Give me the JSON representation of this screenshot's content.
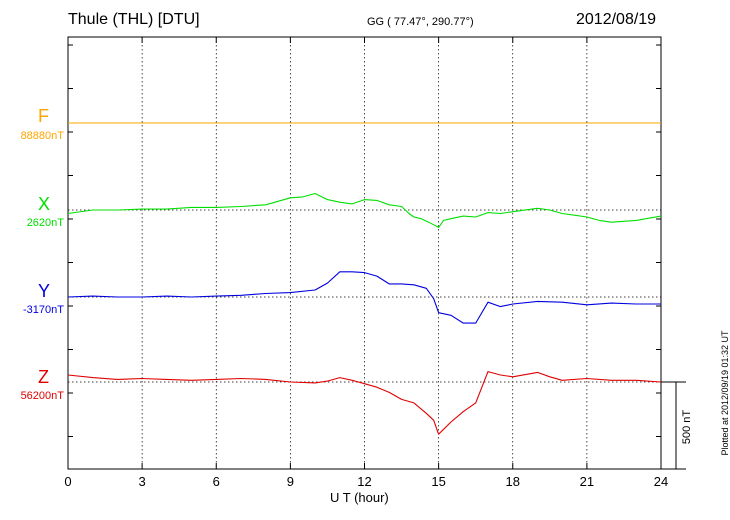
{
  "header": {
    "station": "Thule (THL)  [DTU]",
    "coords": "GG ( 77.47°, 290.77°)",
    "date": "2012/08/19"
  },
  "footer": {
    "plotted": "Plotted at 2012/09/19 01:32 UT"
  },
  "scale_bar": {
    "label": "500 nT",
    "value_nT": 500
  },
  "colors": {
    "F": "#ffa500",
    "X": "#00e000",
    "Y": "#0000e0",
    "Z": "#e00000"
  },
  "chart_data": {
    "type": "line",
    "xlabel": "U T (hour)",
    "xlim": [
      0,
      24
    ],
    "xticks": [
      0,
      3,
      6,
      9,
      12,
      15,
      18,
      21,
      24
    ],
    "grid": true,
    "series": [
      {
        "name": "F",
        "baseline_label": "88880nT",
        "x": [
          0,
          24
        ],
        "y": [
          0,
          0
        ]
      },
      {
        "name": "X",
        "baseline_label": "2620nT",
        "x": [
          0,
          1,
          2,
          3,
          4,
          5,
          6,
          7,
          8,
          9,
          9.5,
          10,
          10.5,
          11,
          11.5,
          12,
          12.5,
          13,
          13.5,
          13.8,
          14,
          14.3,
          14.6,
          15,
          15.2,
          15.5,
          16,
          16.5,
          17,
          17.5,
          18,
          19,
          19.5,
          20,
          20.5,
          21,
          21.5,
          22,
          23,
          24
        ],
        "y": [
          -20,
          0,
          0,
          5,
          5,
          15,
          15,
          20,
          30,
          70,
          75,
          95,
          60,
          45,
          35,
          60,
          55,
          30,
          20,
          -20,
          -40,
          -50,
          -70,
          -100,
          -60,
          -50,
          -35,
          -40,
          -15,
          -20,
          -10,
          10,
          0,
          -20,
          -30,
          -40,
          -60,
          -70,
          -60,
          -35
        ]
      },
      {
        "name": "Y",
        "baseline_label": "-3170nT",
        "x": [
          0,
          1,
          2,
          3,
          4,
          5,
          6,
          7,
          8,
          9,
          10,
          10.5,
          11,
          11.5,
          12,
          12.5,
          13,
          13.5,
          14,
          14.5,
          14.8,
          15,
          15.5,
          16,
          16.5,
          17,
          17.5,
          18,
          19,
          20,
          21,
          22,
          23,
          24
        ],
        "y": [
          0,
          5,
          0,
          0,
          5,
          0,
          5,
          10,
          20,
          25,
          40,
          80,
          145,
          145,
          140,
          120,
          75,
          75,
          70,
          50,
          -10,
          -90,
          -105,
          -150,
          -150,
          -30,
          -55,
          -40,
          -25,
          -30,
          -45,
          -35,
          -40,
          -40
        ]
      },
      {
        "name": "Z",
        "baseline_label": "56200nT",
        "x": [
          0,
          1,
          2,
          3,
          4,
          5,
          6,
          7,
          8,
          9,
          10,
          10.5,
          11,
          11.5,
          12,
          12.5,
          13,
          13.5,
          14,
          14.5,
          14.8,
          15,
          15.5,
          16,
          16.5,
          17,
          17.5,
          18,
          19,
          19.5,
          20,
          21,
          22,
          23,
          24
        ],
        "y": [
          40,
          25,
          15,
          20,
          15,
          10,
          15,
          20,
          15,
          0,
          -5,
          5,
          25,
          10,
          -10,
          -30,
          -60,
          -100,
          -120,
          -180,
          -220,
          -300,
          -230,
          -170,
          -120,
          60,
          40,
          30,
          55,
          30,
          10,
          20,
          10,
          10,
          0
        ]
      }
    ]
  }
}
